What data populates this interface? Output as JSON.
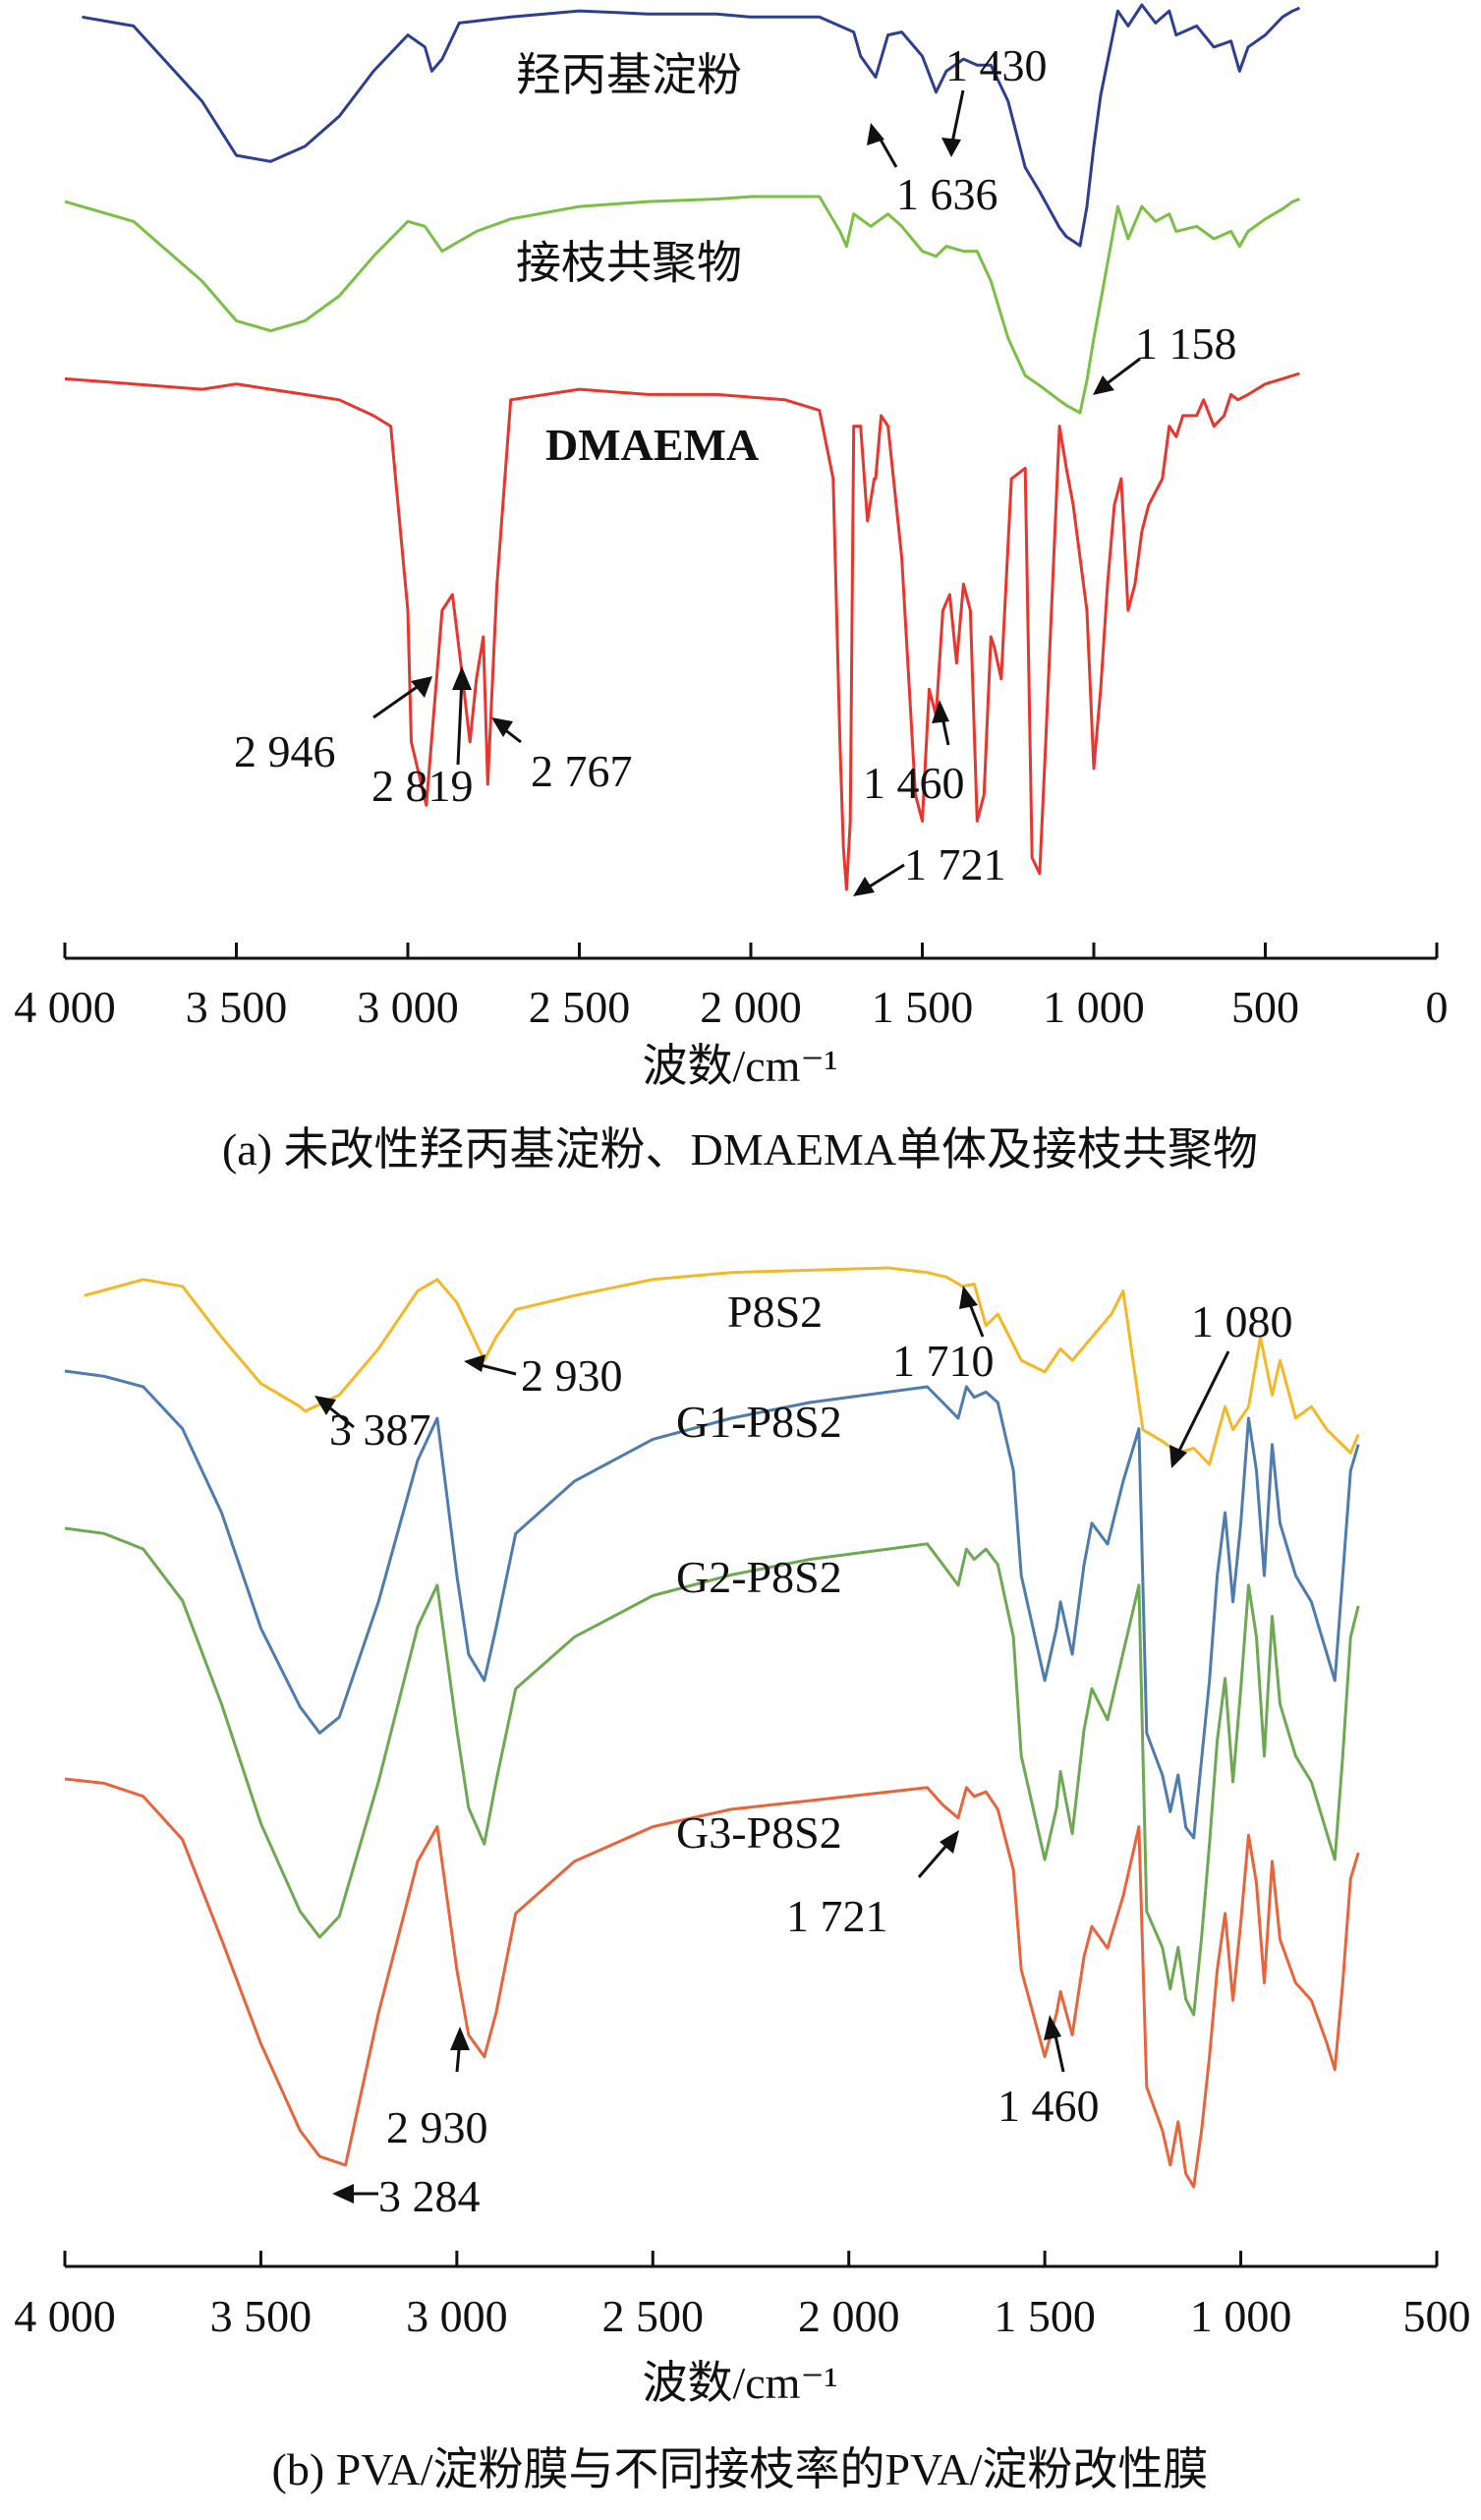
{
  "chart_data": [
    {
      "panel": "a",
      "type": "line",
      "xlabel": "波数/cm⁻¹",
      "caption": "(a) 未改性羟丙基淀粉、DMAEMA单体及接枝共聚物",
      "xlim": [
        4000,
        0
      ],
      "x_ticks": [
        "4 000",
        "3 500",
        "3 000",
        "2 500",
        "2 000",
        "1 500",
        "1 000",
        "500",
        "0"
      ],
      "x_tick_values": [
        4000,
        3500,
        3000,
        2500,
        2000,
        1500,
        1000,
        500,
        0
      ],
      "y_unit": "transmittance (arbitrary, offset)",
      "series": [
        {
          "name": "羟丙基淀粉",
          "color": "#2e3f8f",
          "x": [
            3950,
            3800,
            3600,
            3500,
            3400,
            3300,
            3200,
            3100,
            3000,
            2950,
            2930,
            2900,
            2850,
            2700,
            2500,
            2300,
            2100,
            2000,
            1900,
            1800,
            1700,
            1680,
            1636,
            1600,
            1560,
            1500,
            1460,
            1430,
            1380,
            1340,
            1300,
            1250,
            1200,
            1158,
            1100,
            1080,
            1040,
            1020,
            1000,
            980,
            930,
            900,
            860,
            820,
            780,
            760,
            700,
            650,
            600,
            575,
            550,
            500,
            450,
            420,
            400
          ],
          "y": [
            98,
            95,
            70,
            52,
            50,
            55,
            65,
            80,
            92,
            88,
            80,
            84,
            96,
            98,
            100,
            99,
            99,
            98,
            98,
            98,
            93,
            85,
            78,
            92,
            93,
            85,
            73,
            80,
            84,
            82,
            82,
            70,
            48,
            40,
            28,
            25,
            22,
            35,
            55,
            72,
            100,
            95,
            102,
            96,
            100,
            92,
            95,
            88,
            90,
            80,
            88,
            92,
            98,
            100,
            101
          ]
        },
        {
          "name": "接枝共聚物",
          "color": "#7bbf45",
          "x": [
            4000,
            3800,
            3600,
            3500,
            3400,
            3300,
            3200,
            3100,
            3000,
            2950,
            2900,
            2850,
            2800,
            2700,
            2500,
            2300,
            2100,
            2000,
            1900,
            1800,
            1740,
            1721,
            1700,
            1650,
            1600,
            1560,
            1500,
            1460,
            1430,
            1380,
            1340,
            1300,
            1250,
            1200,
            1158,
            1100,
            1080,
            1040,
            1020,
            1000,
            980,
            930,
            900,
            860,
            820,
            780,
            760,
            700,
            650,
            600,
            575,
            550,
            500,
            450,
            420,
            400
          ],
          "y": [
            100,
            92,
            68,
            52,
            48,
            52,
            62,
            78,
            92,
            90,
            80,
            84,
            88,
            93,
            98,
            100,
            101,
            102,
            102,
            102,
            88,
            82,
            95,
            90,
            95,
            90,
            80,
            78,
            82,
            80,
            80,
            68,
            45,
            30,
            26,
            20,
            18,
            15,
            28,
            45,
            60,
            98,
            85,
            98,
            92,
            95,
            88,
            90,
            85,
            88,
            82,
            88,
            93,
            97,
            100,
            101
          ]
        },
        {
          "name": "DMAEMA",
          "color": "#e8352e",
          "x": [
            4000,
            3800,
            3600,
            3500,
            3400,
            3300,
            3200,
            3100,
            3050,
            3000,
            2990,
            2946,
            2900,
            2870,
            2840,
            2819,
            2800,
            2780,
            2767,
            2740,
            2700,
            2500,
            2300,
            2100,
            1900,
            1800,
            1760,
            1740,
            1730,
            1721,
            1710,
            1700,
            1680,
            1660,
            1640,
            1636,
            1620,
            1600,
            1560,
            1520,
            1500,
            1480,
            1460,
            1440,
            1420,
            1400,
            1380,
            1360,
            1340,
            1320,
            1300,
            1290,
            1270,
            1240,
            1200,
            1180,
            1158,
            1140,
            1100,
            1080,
            1060,
            1040,
            1020,
            1000,
            980,
            960,
            940,
            920,
            900,
            880,
            860,
            840,
            800,
            780,
            760,
            740,
            700,
            680,
            650,
            620,
            600,
            580,
            550,
            500,
            450,
            400
          ],
          "y": [
            99,
            98,
            97,
            98,
            97,
            96,
            95,
            92,
            90,
            55,
            30,
            18,
            55,
            58,
            42,
            30,
            42,
            50,
            22,
            60,
            95,
            97,
            96,
            96,
            95,
            93,
            80,
            30,
            10,
            2,
            15,
            90,
            90,
            72,
            80,
            80,
            92,
            90,
            65,
            20,
            15,
            40,
            35,
            55,
            58,
            45,
            60,
            55,
            15,
            20,
            50,
            48,
            42,
            80,
            82,
            8,
            5,
            30,
            90,
            82,
            75,
            65,
            55,
            25,
            40,
            60,
            75,
            80,
            55,
            60,
            70,
            75,
            80,
            90,
            88,
            92,
            92,
            95,
            90,
            92,
            96,
            95,
            96,
            98,
            99,
            100
          ]
        }
      ],
      "series_labels": [
        "羟丙基淀粉",
        "接枝共聚物",
        "DMAEMA"
      ],
      "annotations": [
        "1 430",
        "1 636",
        "1 158",
        "2 946",
        "2 819",
        "2 767",
        "1 460",
        "1 721"
      ]
    },
    {
      "panel": "b",
      "type": "line",
      "xlabel": "波数/cm⁻¹",
      "caption": "(b) PVA/淀粉膜与不同接枝率的PVA/淀粉改性膜",
      "xlim": [
        4000,
        500
      ],
      "x_ticks": [
        "4 000",
        "3 500",
        "3 000",
        "2 500",
        "2 000",
        "1 500",
        "1 000",
        "500"
      ],
      "x_tick_values": [
        4000,
        3500,
        3000,
        2500,
        2000,
        1500,
        1000,
        500
      ],
      "y_unit": "transmittance (arbitrary, offset)",
      "series": [
        {
          "name": "P8S2",
          "color": "#f2b827",
          "x": [
            3950,
            3800,
            3700,
            3600,
            3500,
            3400,
            3387,
            3300,
            3200,
            3100,
            3050,
            3000,
            2930,
            2900,
            2850,
            2700,
            2500,
            2300,
            2100,
            1900,
            1800,
            1750,
            1710,
            1680,
            1650,
            1620,
            1560,
            1500,
            1460,
            1430,
            1380,
            1330,
            1300,
            1250,
            1200,
            1160,
            1120,
            1080,
            1040,
            1020,
            980,
            950,
            920,
            900,
            860,
            820,
            780,
            750,
            720,
            700
          ],
          "y": [
            88,
            95,
            92,
            70,
            50,
            40,
            38,
            45,
            65,
            90,
            95,
            85,
            60,
            70,
            82,
            88,
            95,
            98,
            99,
            100,
            98,
            96,
            92,
            93,
            75,
            80,
            60,
            55,
            65,
            60,
            70,
            80,
            90,
            30,
            25,
            20,
            22,
            15,
            40,
            30,
            40,
            70,
            45,
            60,
            35,
            40,
            30,
            25,
            20,
            28
          ]
        },
        {
          "name": "G1-P8S2",
          "color": "#4f7bad",
          "x": [
            4000,
            3900,
            3800,
            3700,
            3600,
            3500,
            3400,
            3350,
            3300,
            3200,
            3100,
            3050,
            3000,
            2970,
            2930,
            2900,
            2850,
            2700,
            2500,
            2300,
            2100,
            1900,
            1800,
            1760,
            1721,
            1700,
            1680,
            1650,
            1620,
            1580,
            1560,
            1500,
            1470,
            1460,
            1430,
            1400,
            1380,
            1340,
            1300,
            1260,
            1240,
            1200,
            1180,
            1160,
            1140,
            1120,
            1100,
            1080,
            1060,
            1040,
            1020,
            1000,
            980,
            960,
            940,
            920,
            900,
            860,
            820,
            780,
            760,
            740,
            720,
            700
          ],
          "y": [
            99,
            98,
            96,
            88,
            72,
            50,
            35,
            30,
            33,
            55,
            82,
            90,
            60,
            45,
            40,
            50,
            68,
            78,
            86,
            90,
            93,
            95,
            96,
            93,
            90,
            96,
            94,
            95,
            93,
            80,
            60,
            40,
            50,
            55,
            45,
            62,
            70,
            66,
            78,
            88,
            30,
            22,
            15,
            22,
            12,
            10,
            25,
            40,
            60,
            72,
            55,
            70,
            90,
            80,
            60,
            85,
            70,
            60,
            55,
            45,
            40,
            60,
            80,
            85
          ]
        },
        {
          "name": "G2-P8S2",
          "color": "#6fa853",
          "x": [
            4000,
            3900,
            3800,
            3700,
            3600,
            3500,
            3400,
            3350,
            3300,
            3200,
            3100,
            3050,
            3000,
            2970,
            2930,
            2900,
            2850,
            2700,
            2500,
            2300,
            2100,
            1900,
            1800,
            1760,
            1721,
            1700,
            1680,
            1650,
            1620,
            1580,
            1560,
            1500,
            1470,
            1460,
            1430,
            1400,
            1380,
            1340,
            1300,
            1260,
            1240,
            1200,
            1180,
            1160,
            1140,
            1120,
            1100,
            1080,
            1060,
            1040,
            1020,
            1000,
            980,
            960,
            940,
            920,
            900,
            860,
            820,
            780,
            760,
            740,
            720,
            700
          ],
          "y": [
            99,
            98,
            95,
            85,
            65,
            42,
            25,
            20,
            24,
            50,
            80,
            88,
            60,
            45,
            38,
            50,
            68,
            78,
            86,
            90,
            93,
            95,
            96,
            92,
            88,
            95,
            93,
            95,
            92,
            78,
            55,
            35,
            45,
            52,
            40,
            60,
            68,
            62,
            75,
            88,
            25,
            18,
            10,
            18,
            8,
            5,
            20,
            38,
            58,
            70,
            50,
            68,
            88,
            78,
            55,
            82,
            65,
            55,
            50,
            40,
            35,
            55,
            78,
            84
          ]
        },
        {
          "name": "G3-P8S2",
          "color": "#e8643c",
          "x": [
            4000,
            3900,
            3800,
            3700,
            3600,
            3500,
            3400,
            3350,
            3284,
            3200,
            3100,
            3050,
            3000,
            2970,
            2930,
            2900,
            2850,
            2700,
            2500,
            2300,
            2100,
            1900,
            1800,
            1760,
            1721,
            1700,
            1680,
            1650,
            1620,
            1580,
            1560,
            1500,
            1470,
            1460,
            1430,
            1400,
            1380,
            1340,
            1300,
            1260,
            1240,
            1200,
            1180,
            1160,
            1140,
            1120,
            1100,
            1080,
            1060,
            1040,
            1020,
            1000,
            980,
            960,
            940,
            920,
            900,
            860,
            820,
            780,
            760,
            740,
            720,
            700
          ],
          "y": [
            99,
            98,
            95,
            85,
            62,
            38,
            18,
            12,
            10,
            45,
            80,
            88,
            55,
            40,
            35,
            45,
            68,
            80,
            88,
            92,
            94,
            96,
            97,
            93,
            90,
            97,
            95,
            96,
            92,
            78,
            55,
            35,
            45,
            50,
            40,
            58,
            65,
            60,
            72,
            88,
            28,
            18,
            10,
            20,
            8,
            5,
            18,
            35,
            55,
            68,
            48,
            66,
            86,
            75,
            52,
            80,
            62,
            52,
            48,
            38,
            32,
            52,
            76,
            82
          ]
        }
      ],
      "series_labels": [
        "P8S2",
        "G1-P8S2",
        "G2-P8S2",
        "G3-P8S2"
      ],
      "annotations": [
        "1 080",
        "1 710",
        "2 930",
        "3 387",
        "1 721",
        "2 930",
        "1 460",
        "3 284"
      ]
    }
  ]
}
